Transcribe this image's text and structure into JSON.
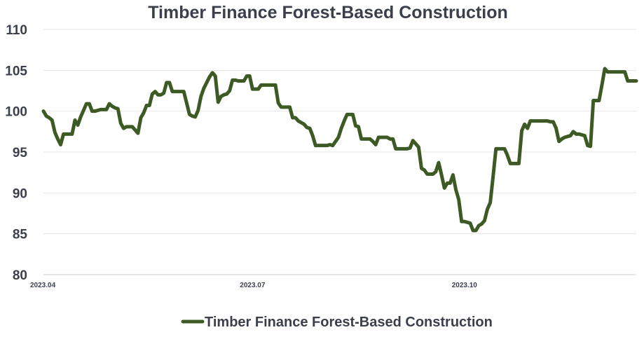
{
  "chart_data": {
    "type": "line",
    "title": "Timber Finance Forest-Based Construction",
    "xlabel": "",
    "ylabel": "",
    "ylim": [
      80,
      110
    ],
    "yticks": [
      80,
      85,
      90,
      95,
      100,
      105,
      110
    ],
    "xticks": [
      "2023.04",
      "2023.07",
      "2023.10"
    ],
    "grid": true,
    "legend_position": "bottom",
    "colors": {
      "series": "#3d5a24",
      "text": "#3a3f4b",
      "grid": "#e6e6e6"
    },
    "series": [
      {
        "name": "Timber Finance Forest-Based Construction",
        "values": [
          100.0,
          99.4,
          99.2,
          98.9,
          97.4,
          96.6,
          95.9,
          97.2,
          97.2,
          97.2,
          97.2,
          98.9,
          98.3,
          99.3,
          100.1,
          100.9,
          100.9,
          100.0,
          100.0,
          100.1,
          100.2,
          100.2,
          100.2,
          100.9,
          100.6,
          100.4,
          100.3,
          98.5,
          97.9,
          98.1,
          98.1,
          98.1,
          97.7,
          97.3,
          99.2,
          99.8,
          100.7,
          100.7,
          102.1,
          102.4,
          102.0,
          102.0,
          102.2,
          103.5,
          103.5,
          102.4,
          102.4,
          102.4,
          102.4,
          102.4,
          101.0,
          99.6,
          99.4,
          99.3,
          100.1,
          101.8,
          102.8,
          103.5,
          104.2,
          104.7,
          104.3,
          101.1,
          101.8,
          102.0,
          102.1,
          102.5,
          103.8,
          103.8,
          103.7,
          103.7,
          103.7,
          104.3,
          104.3,
          102.7,
          102.7,
          102.7,
          103.2,
          103.2,
          103.2,
          103.2,
          103.2,
          103.2,
          101.0,
          100.5,
          100.5,
          100.5,
          100.5,
          99.2,
          99.2,
          98.8,
          98.6,
          98.4,
          98.0,
          97.9,
          97.0,
          95.8,
          95.8,
          95.8,
          95.8,
          95.8,
          95.9,
          95.8,
          96.3,
          96.8,
          97.9,
          98.8,
          99.6,
          99.6,
          99.6,
          98.2,
          98.1,
          96.6,
          96.6,
          96.6,
          96.6,
          96.3,
          95.9,
          96.8,
          96.8,
          96.8,
          96.8,
          96.6,
          96.6,
          95.4,
          95.4,
          95.4,
          95.4,
          95.4,
          95.5,
          96.4,
          96.0,
          95.6,
          93.0,
          92.8,
          92.3,
          92.3,
          92.3,
          92.6,
          93.7,
          92.2,
          90.6,
          91.2,
          91.2,
          92.2,
          90.4,
          89.2,
          86.5,
          86.5,
          86.4,
          86.3,
          85.4,
          85.4,
          86.0,
          86.2,
          86.6,
          88.0,
          88.8,
          92.0,
          95.4,
          95.4,
          95.4,
          95.4,
          94.6,
          93.6,
          93.6,
          93.6,
          93.6,
          97.6,
          98.4,
          97.9,
          98.8,
          98.8,
          98.8,
          98.8,
          98.8,
          98.8,
          98.8,
          98.7,
          98.7,
          97.9,
          96.3,
          96.6,
          96.8,
          96.9,
          97.0,
          97.5,
          97.2,
          97.2,
          97.1,
          97.0,
          95.8,
          95.7,
          101.3,
          101.3,
          101.3,
          103.2,
          105.2,
          104.8,
          104.8,
          104.8,
          104.8,
          104.8,
          104.8,
          104.8,
          103.7,
          103.7,
          103.7,
          103.7
        ]
      }
    ]
  }
}
